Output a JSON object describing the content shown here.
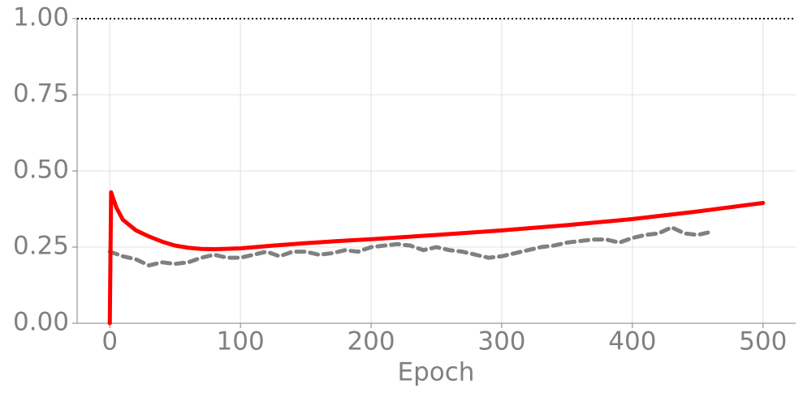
{
  "chart_data": {
    "type": "line",
    "x_label": "Epoch",
    "xlim": [
      -25,
      525
    ],
    "ylim": [
      0,
      1
    ],
    "xticks": [
      0,
      100,
      200,
      300,
      400,
      500
    ],
    "yticks": [
      {
        "value": 0,
        "label": "0.00"
      },
      {
        "value": 0.25,
        "label": "0.25"
      },
      {
        "value": 0.5,
        "label": "0.50"
      },
      {
        "value": 0.75,
        "label": "0.75"
      },
      {
        "value": 1,
        "label": "1.00"
      }
    ],
    "grid": true,
    "hline": 1,
    "hline_color": "#000000",
    "series": [
      {
        "color": "#ff0000",
        "style": "solid",
        "x": [
          0,
          1,
          5,
          10,
          20,
          30,
          40,
          50,
          60,
          70,
          80,
          100,
          125,
          150,
          175,
          200,
          250,
          300,
          350,
          400,
          450,
          500
        ],
        "values": [
          0,
          0.43,
          0.38,
          0.34,
          0.305,
          0.285,
          0.268,
          0.255,
          0.248,
          0.244,
          0.243,
          0.246,
          0.255,
          0.263,
          0.27,
          0.276,
          0.29,
          0.305,
          0.322,
          0.342,
          0.367,
          0.395
        ]
      },
      {
        "color": "#808080",
        "style": "dashed",
        "x": [
          0,
          10,
          20,
          30,
          40,
          50,
          60,
          70,
          80,
          90,
          100,
          110,
          120,
          130,
          140,
          150,
          160,
          170,
          180,
          190,
          200,
          210,
          220,
          230,
          240,
          250,
          260,
          270,
          280,
          290,
          300,
          310,
          320,
          330,
          340,
          350,
          360,
          370,
          380,
          390,
          400,
          410,
          420,
          430,
          440,
          450,
          460
        ],
        "values": [
          0.235,
          0.22,
          0.21,
          0.19,
          0.2,
          0.195,
          0.2,
          0.215,
          0.225,
          0.215,
          0.215,
          0.225,
          0.235,
          0.22,
          0.235,
          0.235,
          0.225,
          0.23,
          0.24,
          0.235,
          0.25,
          0.255,
          0.26,
          0.255,
          0.24,
          0.25,
          0.24,
          0.235,
          0.225,
          0.215,
          0.22,
          0.23,
          0.24,
          0.25,
          0.255,
          0.265,
          0.27,
          0.275,
          0.275,
          0.265,
          0.28,
          0.29,
          0.295,
          0.315,
          0.295,
          0.29,
          0.3
        ]
      }
    ]
  }
}
